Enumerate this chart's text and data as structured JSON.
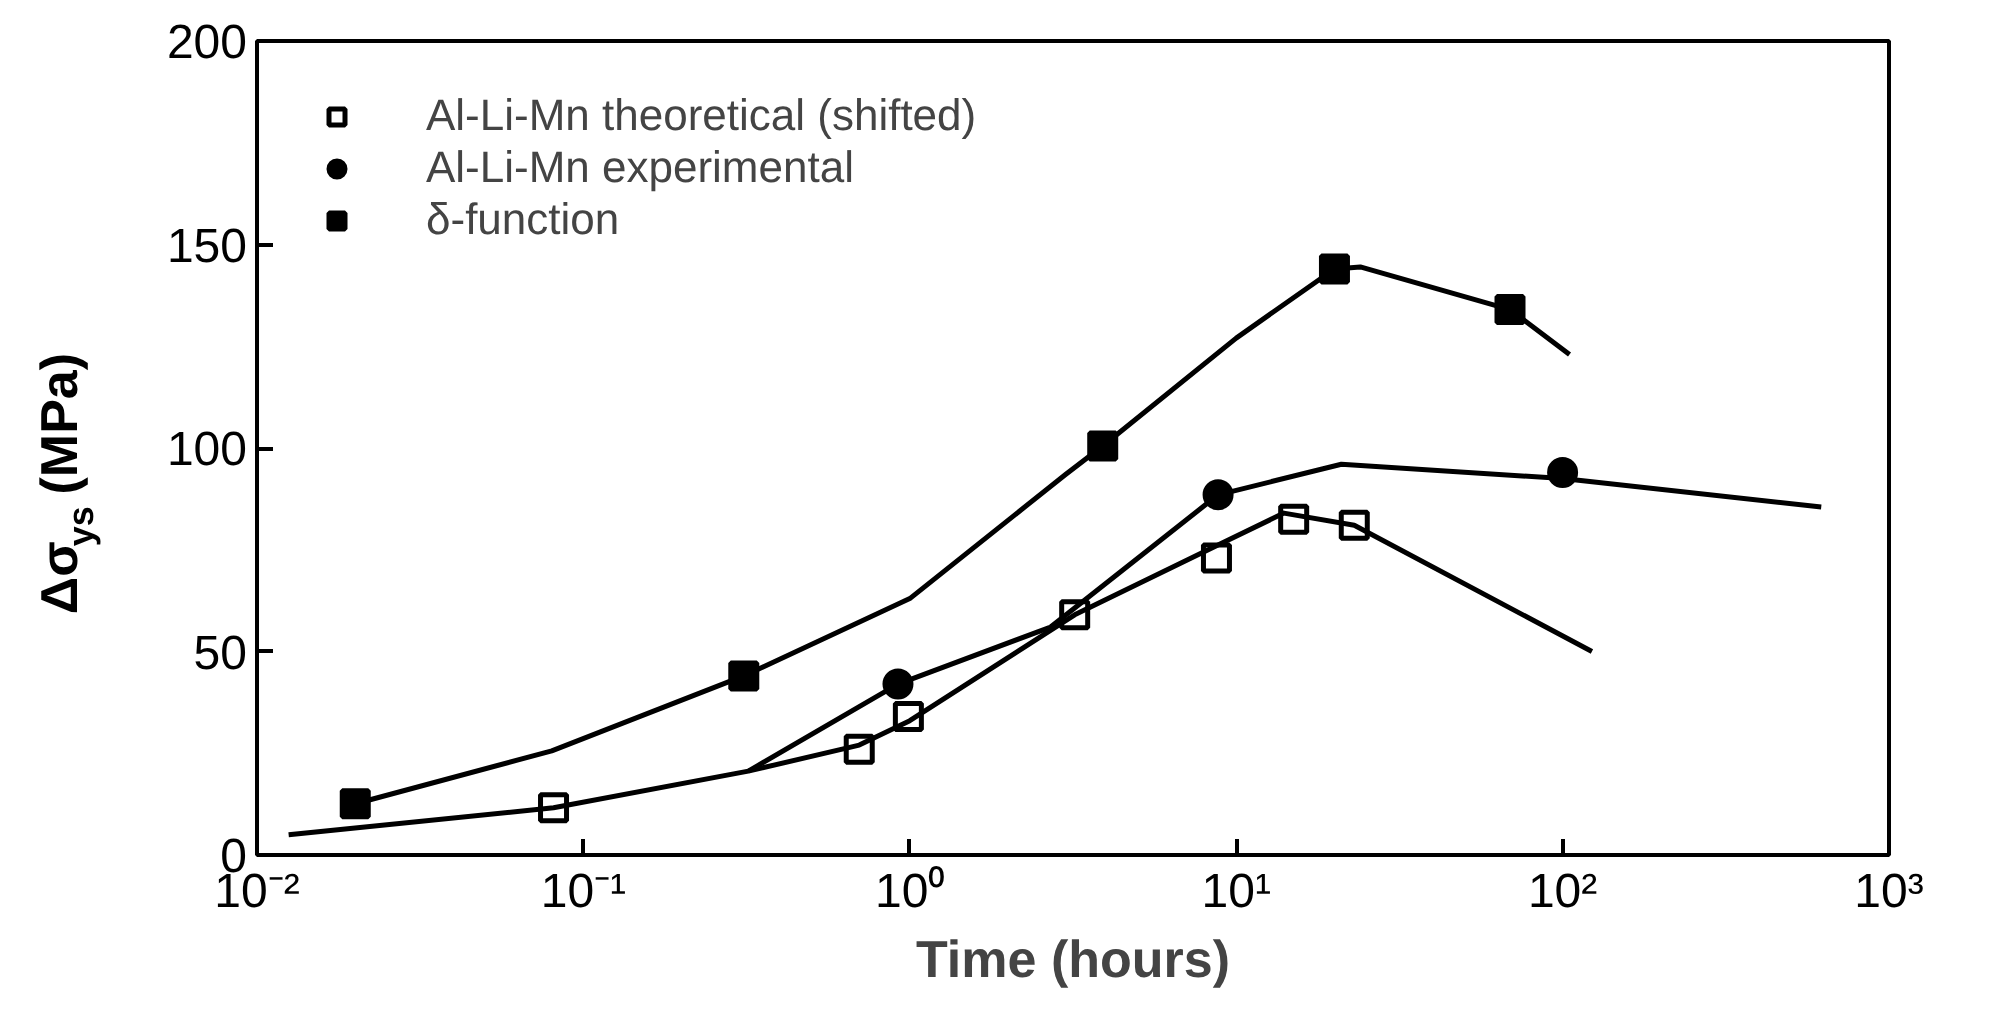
{
  "chart_data": {
    "type": "scatter",
    "xlabel": "Time (hours)",
    "ylabel": "Δσ$_{ys}$ (MPa)",
    "log": "x",
    "xlim": [
      0.01,
      1000
    ],
    "xticks": [
      {
        "value": 0.01,
        "label": "10⁻²"
      },
      {
        "value": 0.1,
        "label": "10⁻¹"
      },
      {
        "value": 1,
        "label": "10⁰"
      },
      {
        "value": 10,
        "label": "10¹"
      },
      {
        "value": 100,
        "label": "10²"
      },
      {
        "value": 1000,
        "label": "10³"
      }
    ],
    "ylim": [
      0,
      200
    ],
    "yticks": [
      0,
      50,
      100,
      150,
      200
    ],
    "grid": false,
    "legend": "top left",
    "series": [
      {
        "name": "Al-Li-Mn theoretical (shifted)",
        "marker": "square",
        "color": "#ffffff",
        "x": [
          0.081,
          0.7,
          0.99,
          3.2,
          8.7,
          15,
          23
        ],
        "values": [
          11.6,
          26,
          34,
          59,
          73,
          82.5,
          81
        ]
      },
      {
        "name": "Al-Li-Mn experimental",
        "marker": "circle",
        "color": "#000000",
        "x": [
          0.92,
          8.8,
          100
        ],
        "values": [
          42,
          88.5,
          94
        ]
      },
      {
        "name": "δ-function",
        "marker": "square",
        "color": "#000000",
        "x": [
          0.02,
          0.31,
          3.9,
          20,
          69
        ],
        "values": [
          12.6,
          44,
          100.5,
          144,
          134
        ]
      },
      {
        "type": "line",
        "color": "#000000",
        "x": [
          0.0125,
          0.081,
          0.32,
          0.7,
          1.0,
          3.2,
          8.7,
          14,
          23,
          123
        ],
        "values": [
          5,
          11.6,
          20.6,
          27,
          33,
          59,
          76,
          84,
          81,
          50
        ]
      },
      {
        "type": "line",
        "color": "#000000",
        "x": [
          0.32,
          0.92,
          2.7,
          8.8,
          21,
          100,
          620
        ],
        "values": [
          20.6,
          42,
          56,
          88.5,
          96,
          92.5,
          85.5
        ]
      },
      {
        "type": "line",
        "color": "#000000",
        "x": [
          0.02,
          0.08,
          0.31,
          1.0,
          3.0,
          3.9,
          10,
          20,
          24,
          69,
          105
        ],
        "values": [
          12.6,
          25.6,
          44,
          63,
          93.5,
          100.5,
          127,
          144,
          144.5,
          134,
          123
        ]
      }
    ]
  }
}
